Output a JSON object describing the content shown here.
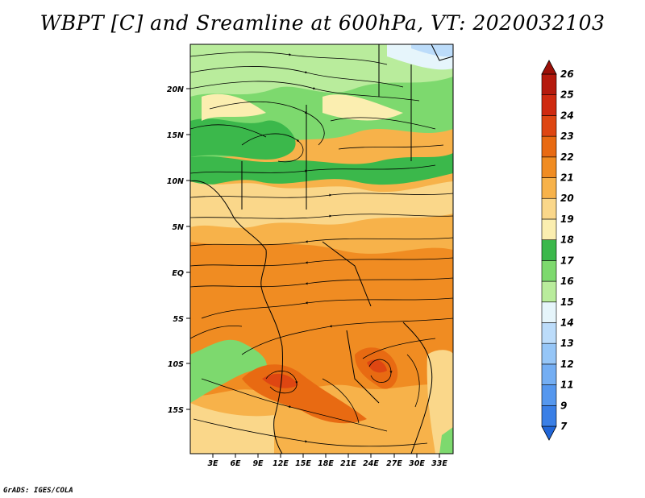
{
  "title": "WBPT [C] and Sreamline at 600hPa, VT: 2020032103",
  "footer": "GrADS: IGES/COLA",
  "map": {
    "lat_labels": [
      "20N",
      "15N",
      "10N",
      "5N",
      "EQ",
      "5S",
      "10S",
      "15S"
    ],
    "lon_labels": [
      "3E",
      "6E",
      "9E",
      "12E",
      "15E",
      "18E",
      "21E",
      "24E",
      "27E",
      "30E",
      "33E"
    ]
  },
  "colorbar": {
    "levels": [
      "7",
      "9",
      "11",
      "12",
      "13",
      "14",
      "15",
      "16",
      "17",
      "18",
      "19",
      "20",
      "21",
      "22",
      "23",
      "24",
      "25",
      "26"
    ],
    "colors": [
      "#2166d8",
      "#3a7fe6",
      "#5597ee",
      "#74aef3",
      "#96c6f7",
      "#bcdcfa",
      "#e6f5fb",
      "#b9ec9c",
      "#7dd96e",
      "#3bb84b",
      "#fbeeb0",
      "#fad78a",
      "#f7b24a",
      "#f08c22",
      "#e86a12",
      "#de4612",
      "#cf2a10",
      "#b51a0d",
      "#9c1008"
    ]
  }
}
